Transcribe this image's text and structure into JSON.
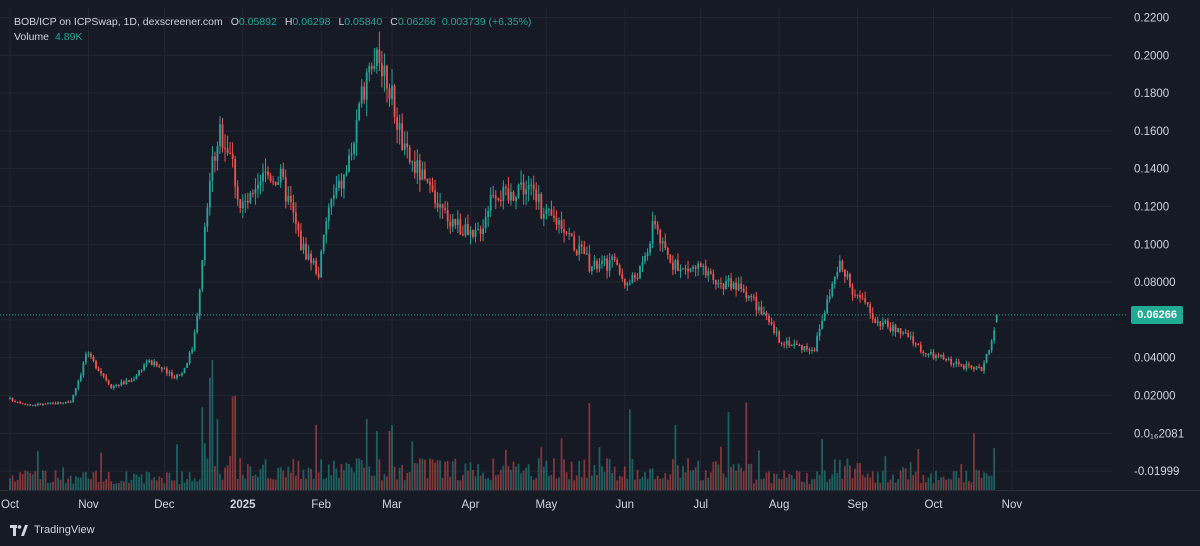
{
  "legend": {
    "symbol": "BOB/ICP on ICPSwap, 1D, dexscreener.com",
    "open_label": "O",
    "open": "0.05892",
    "high_label": "H",
    "high": "0.06298",
    "low_label": "L",
    "low": "0.05840",
    "close_label": "C",
    "close": "0.06266",
    "change": "0.003739 (+6.35%)",
    "volume_label": "Volume",
    "volume": "4.89K"
  },
  "current_price_label": "0.06266",
  "brand": "TradingView",
  "colors": {
    "background": "#161a25",
    "up": "#26a69a",
    "down": "#ef5350",
    "grid": "#232632",
    "text": "#d1d4dc"
  },
  "chart_data": {
    "type": "candlestick",
    "timeframe": "1D",
    "ylim": [
      -0.03,
      0.225
    ],
    "y_tick_labels": [
      "0.2200",
      "0.2000",
      "0.1800",
      "0.1600",
      "0.1400",
      "0.1200",
      "0.1000",
      "0.08000",
      "0.06000",
      "0.04000",
      "0.02000",
      "0.0₁₆2081",
      "-0.01999"
    ],
    "y_tick_values": [
      0.22,
      0.2,
      0.18,
      0.16,
      0.14,
      0.12,
      0.1,
      0.08,
      0.06,
      0.04,
      0.02,
      0,
      -0.02
    ],
    "x_tick_labels": [
      "Oct",
      "Nov",
      "Dec",
      "2025",
      "Feb",
      "Mar",
      "Apr",
      "May",
      "Jun",
      "Jul",
      "Aug",
      "Sep",
      "Oct",
      "Nov"
    ],
    "x_tick_days": [
      0,
      31,
      61,
      92,
      123,
      151,
      182,
      212,
      243,
      273,
      304,
      335,
      365,
      396
    ],
    "day_count": 390,
    "price_path": [
      [
        0,
        0.018
      ],
      [
        8,
        0.015
      ],
      [
        20,
        0.016
      ],
      [
        24,
        0.017
      ],
      [
        28,
        0.032
      ],
      [
        30,
        0.042
      ],
      [
        34,
        0.036
      ],
      [
        40,
        0.025
      ],
      [
        48,
        0.028
      ],
      [
        54,
        0.038
      ],
      [
        58,
        0.036
      ],
      [
        64,
        0.03
      ],
      [
        68,
        0.032
      ],
      [
        72,
        0.045
      ],
      [
        75,
        0.075
      ],
      [
        79,
        0.135
      ],
      [
        83,
        0.16
      ],
      [
        87,
        0.15
      ],
      [
        91,
        0.12
      ],
      [
        97,
        0.125
      ],
      [
        101,
        0.138
      ],
      [
        107,
        0.135
      ],
      [
        111,
        0.12
      ],
      [
        115,
        0.1
      ],
      [
        119,
        0.092
      ],
      [
        122,
        0.085
      ],
      [
        126,
        0.12
      ],
      [
        132,
        0.135
      ],
      [
        137,
        0.16
      ],
      [
        141,
        0.192
      ],
      [
        145,
        0.205
      ],
      [
        149,
        0.188
      ],
      [
        152,
        0.172
      ],
      [
        156,
        0.148
      ],
      [
        162,
        0.138
      ],
      [
        168,
        0.12
      ],
      [
        176,
        0.112
      ],
      [
        183,
        0.102
      ],
      [
        187,
        0.112
      ],
      [
        191,
        0.13
      ],
      [
        197,
        0.124
      ],
      [
        201,
        0.132
      ],
      [
        207,
        0.128
      ],
      [
        211,
        0.115
      ],
      [
        218,
        0.112
      ],
      [
        224,
        0.098
      ],
      [
        230,
        0.088
      ],
      [
        238,
        0.09
      ],
      [
        244,
        0.079
      ],
      [
        250,
        0.088
      ],
      [
        255,
        0.113
      ],
      [
        258,
        0.098
      ],
      [
        264,
        0.086
      ],
      [
        272,
        0.088
      ],
      [
        278,
        0.08
      ],
      [
        286,
        0.078
      ],
      [
        292,
        0.074
      ],
      [
        298,
        0.062
      ],
      [
        304,
        0.05
      ],
      [
        312,
        0.046
      ],
      [
        318,
        0.045
      ],
      [
        324,
        0.075
      ],
      [
        328,
        0.089
      ],
      [
        332,
        0.078
      ],
      [
        337,
        0.07
      ],
      [
        342,
        0.06
      ],
      [
        350,
        0.055
      ],
      [
        356,
        0.05
      ],
      [
        362,
        0.042
      ],
      [
        368,
        0.04
      ],
      [
        374,
        0.037
      ],
      [
        380,
        0.034
      ],
      [
        384,
        0.034
      ],
      [
        388,
        0.05
      ],
      [
        392,
        0.063
      ],
      [
        396,
        0.058
      ],
      [
        402,
        0.052
      ],
      [
        408,
        0.05
      ],
      [
        414,
        0.055
      ],
      [
        420,
        0.056
      ],
      [
        426,
        0.06
      ],
      [
        430,
        0.06266
      ]
    ],
    "volume_axis_max": 0.11,
    "volume_spikes": [
      [
        76,
        0.07
      ],
      [
        79,
        0.095
      ],
      [
        80,
        0.12
      ],
      [
        82,
        0.06
      ],
      [
        141,
        0.06
      ],
      [
        145,
        0.05
      ],
      [
        150,
        0.05
      ],
      [
        151,
        0.055
      ]
    ],
    "last": {
      "open": 0.05892,
      "high": 0.06298,
      "low": 0.0584,
      "close": 0.06266
    }
  }
}
